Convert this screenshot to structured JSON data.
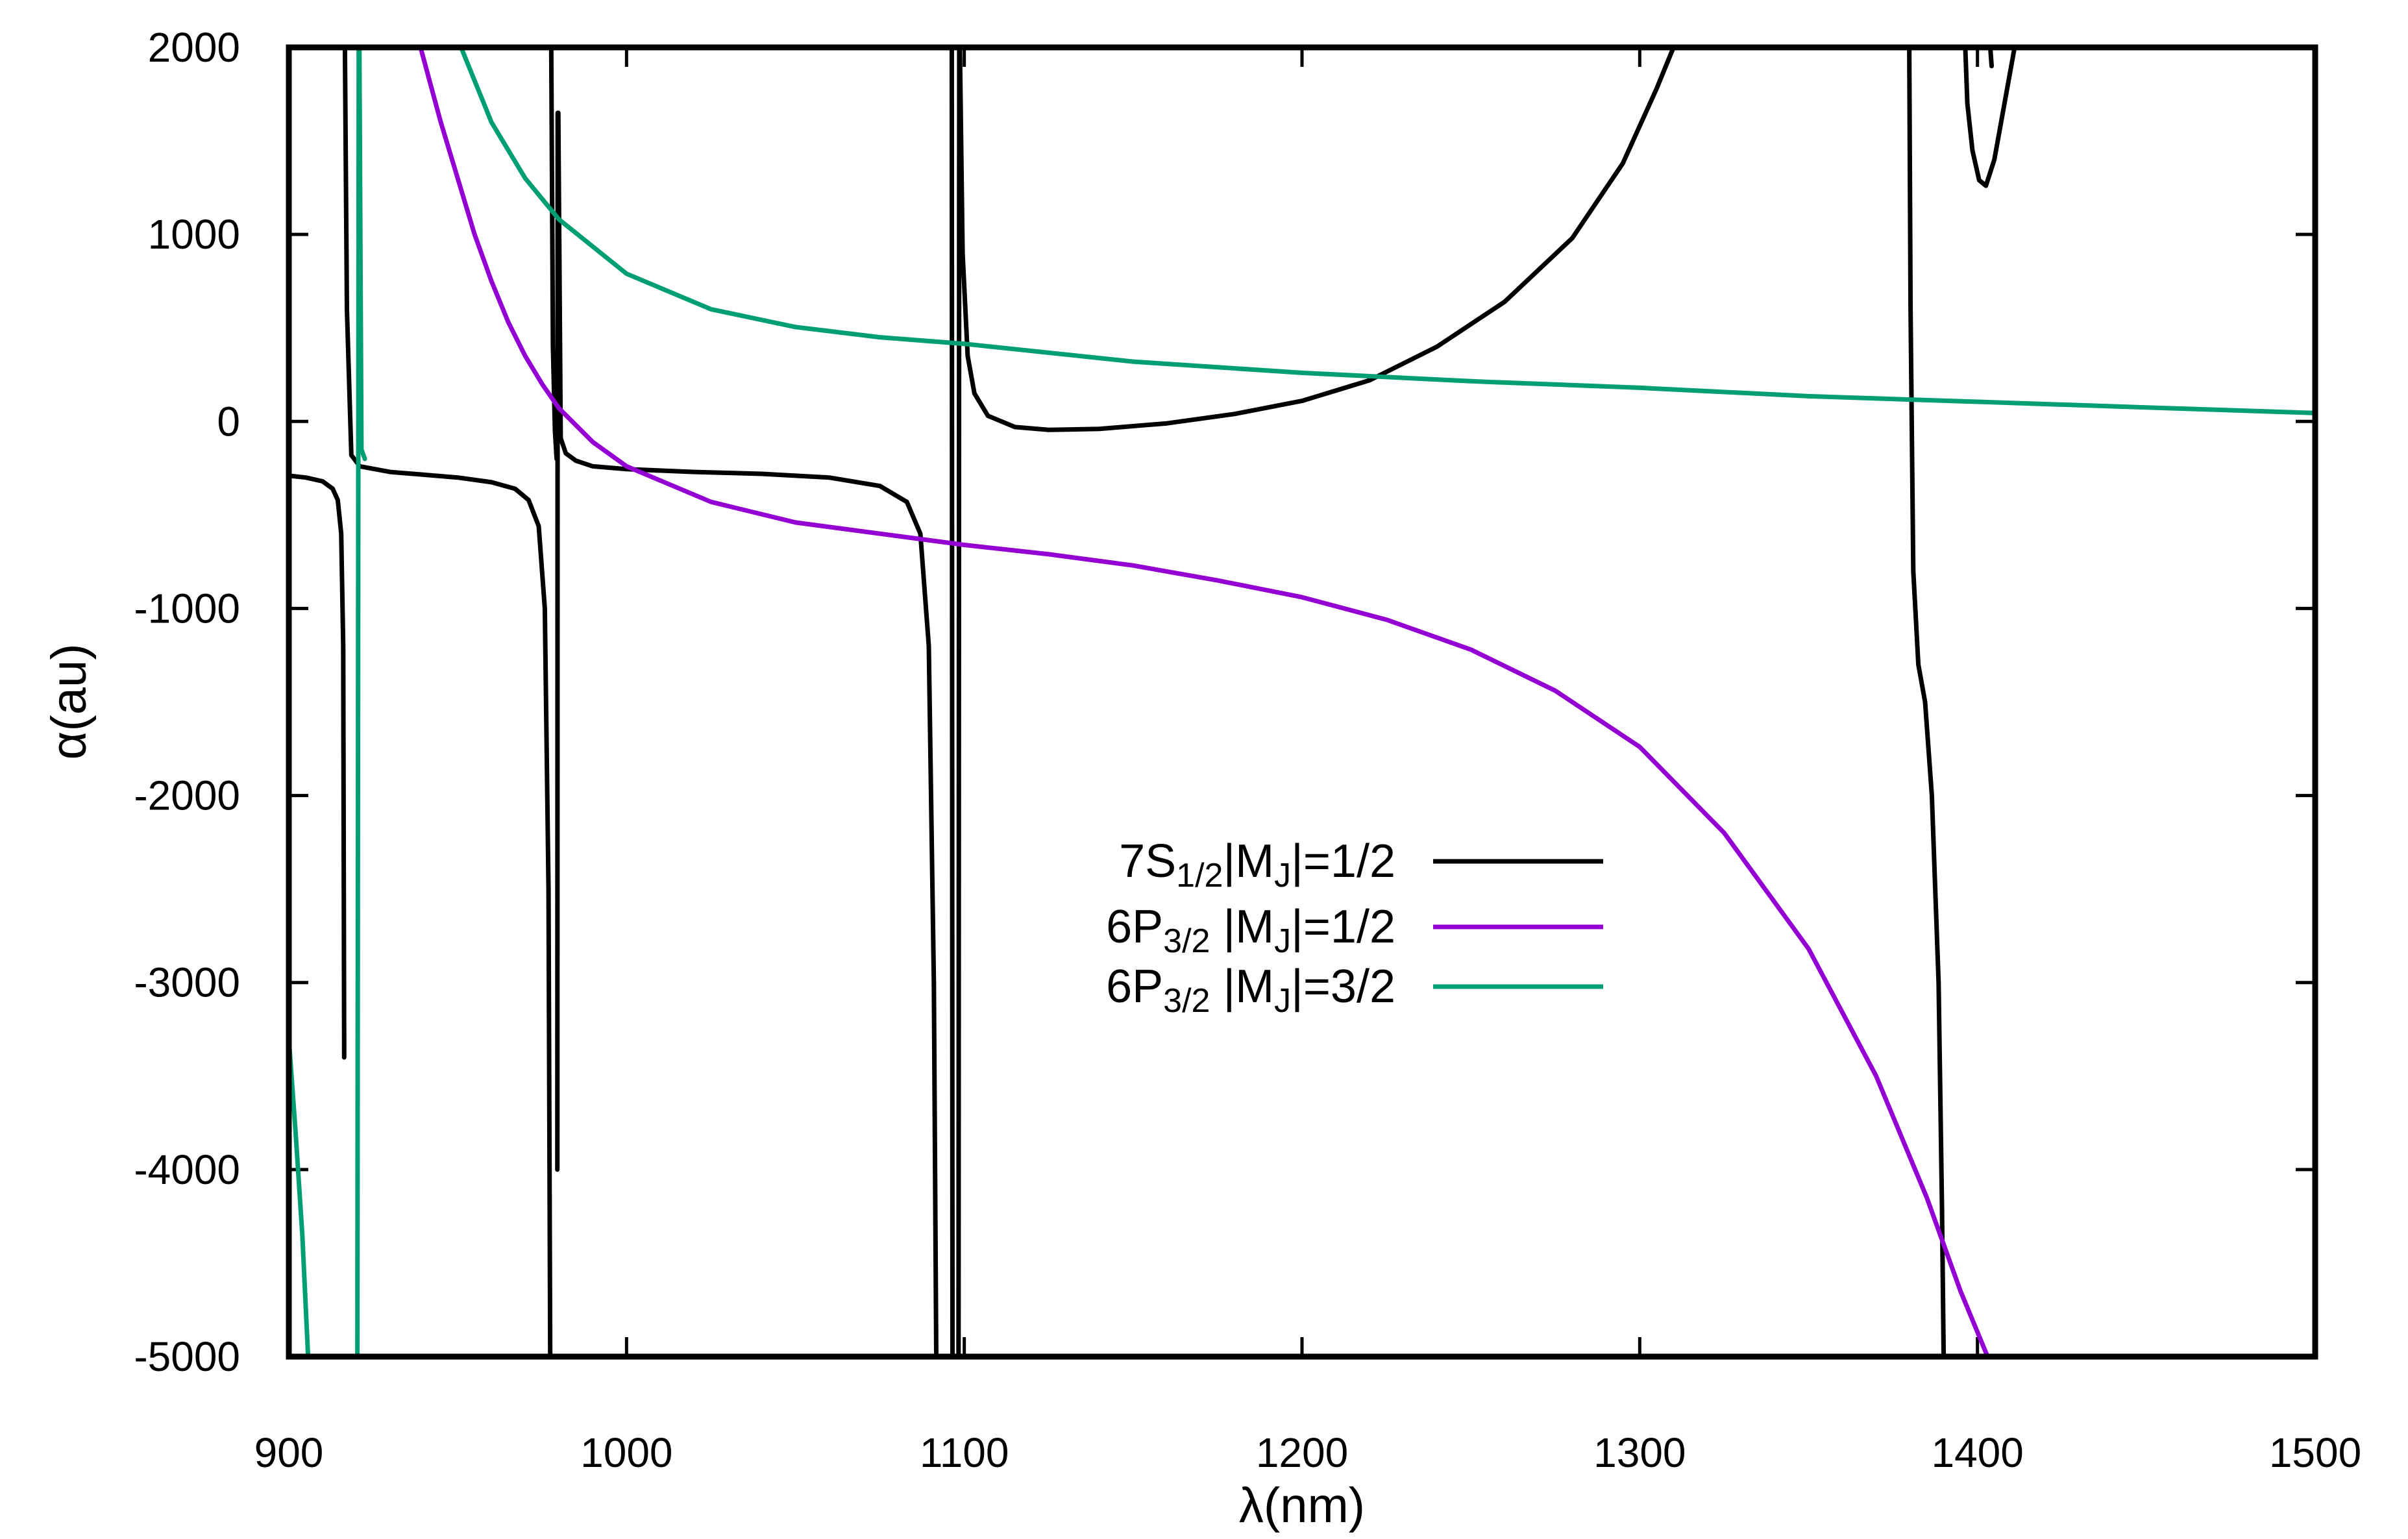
{
  "chart_data": {
    "type": "line",
    "title": "",
    "xlabel": "λ(nm)",
    "ylabel": "α(au)",
    "xlim": [
      900,
      1500
    ],
    "ylim": [
      -5000,
      2000
    ],
    "xticks": [
      900,
      1000,
      1100,
      1200,
      1300,
      1400,
      1500
    ],
    "yticks": [
      2000,
      1000,
      0,
      -1000,
      -2000,
      -3000,
      -4000,
      -5000
    ],
    "grid": false,
    "legend_position": "center-right",
    "series": [
      {
        "name": "7S1/2|MJ|=1/2",
        "legend": {
          "base": "7S",
          "sub1": "1/2",
          "mid": "|M",
          "sub2": "J",
          "tail": "|=1/2"
        },
        "color": "#000000",
        "points": [
          [
            900,
            -290
          ],
          [
            905,
            -300
          ],
          [
            910,
            -320
          ],
          [
            913,
            -360
          ],
          [
            914.5,
            -420
          ],
          [
            915.5,
            -600
          ],
          [
            916.1,
            -1200
          ],
          [
            916.4,
            -3400
          ],
          [
            null,
            null
          ],
          [
            916.6,
            2000
          ],
          [
            917.2,
            600
          ],
          [
            918.5,
            -180
          ],
          [
            921,
            -240
          ],
          [
            930,
            -270
          ],
          [
            940,
            -285
          ],
          [
            950,
            -300
          ],
          [
            960,
            -325
          ],
          [
            967,
            -360
          ],
          [
            971,
            -420
          ],
          [
            974,
            -560
          ],
          [
            975.8,
            -1000
          ],
          [
            976.9,
            -2500
          ],
          [
            977.4,
            -5000
          ],
          [
            null,
            null
          ],
          [
            977.7,
            2000
          ],
          [
            978.2,
            400
          ],
          [
            978.8,
            -50
          ],
          [
            979.3,
            -200
          ],
          [
            null,
            null
          ],
          [
            979.5,
            -4000
          ],
          [
            979.6,
            1650
          ],
          [
            null,
            null
          ],
          [
            979.8,
            1650
          ],
          [
            980.5,
            -90
          ],
          [
            982,
            -170
          ],
          [
            985,
            -210
          ],
          [
            990,
            -240
          ],
          [
            1000,
            -255
          ],
          [
            1020,
            -270
          ],
          [
            1040,
            -280
          ],
          [
            1060,
            -300
          ],
          [
            1075,
            -345
          ],
          [
            1083,
            -430
          ],
          [
            1087,
            -600
          ],
          [
            1089.5,
            -1200
          ],
          [
            1091,
            -3000
          ],
          [
            1091.7,
            -5000
          ],
          [
            null,
            null
          ],
          [
            1096.3,
            2000
          ],
          [
            1096.5,
            -5000
          ],
          [
            null,
            null
          ],
          [
            1098.3,
            -5000
          ],
          [
            1098.5,
            2000
          ],
          [
            null,
            null
          ],
          [
            1098.7,
            2000
          ],
          [
            1099.5,
            900
          ],
          [
            1101,
            350
          ],
          [
            1103,
            150
          ],
          [
            1107,
            30
          ],
          [
            1115,
            -30
          ],
          [
            1125,
            -45
          ],
          [
            1140,
            -40
          ],
          [
            1160,
            -10
          ],
          [
            1180,
            40
          ],
          [
            1200,
            110
          ],
          [
            1220,
            220
          ],
          [
            1240,
            400
          ],
          [
            1260,
            640
          ],
          [
            1280,
            980
          ],
          [
            1295,
            1380
          ],
          [
            1305,
            1780
          ],
          [
            1310,
            2000
          ],
          [
            null,
            null
          ],
          [
            1379.8,
            2000
          ],
          [
            1380.2,
            600
          ],
          [
            1381,
            -800
          ],
          [
            1382.5,
            -1300
          ],
          [
            1384.5,
            -1500
          ],
          [
            1386.5,
            -2000
          ],
          [
            1388.5,
            -3000
          ],
          [
            1389.5,
            -4200
          ],
          [
            1390,
            -5000
          ],
          [
            null,
            null
          ],
          [
            1396.4,
            2000
          ],
          [
            1397,
            1700
          ],
          [
            1398.5,
            1450
          ],
          [
            1400.5,
            1290
          ],
          [
            1402.5,
            1260
          ],
          [
            1405,
            1400
          ],
          [
            1408,
            1700
          ],
          [
            1411,
            2000
          ],
          [
            null,
            null
          ],
          [
            1403.8,
            2000
          ],
          [
            1404.2,
            1900
          ]
        ]
      },
      {
        "name": "6P3/2 |MJ|=1/2",
        "legend": {
          "base": "6P",
          "sub1": "3/2",
          "mid": " |M",
          "sub2": "J",
          "tail": "|=1/2"
        },
        "color": "#9400D3",
        "points": [
          [
            939,
            2000
          ],
          [
            945,
            1600
          ],
          [
            950,
            1300
          ],
          [
            955,
            1000
          ],
          [
            960,
            750
          ],
          [
            965,
            530
          ],
          [
            970,
            350
          ],
          [
            975,
            200
          ],
          [
            980,
            70
          ],
          [
            990,
            -110
          ],
          [
            1000,
            -240
          ],
          [
            1025,
            -430
          ],
          [
            1050,
            -540
          ],
          [
            1075,
            -600
          ],
          [
            1100,
            -660
          ],
          [
            1125,
            -710
          ],
          [
            1150,
            -770
          ],
          [
            1175,
            -850
          ],
          [
            1200,
            -940
          ],
          [
            1225,
            -1060
          ],
          [
            1250,
            -1220
          ],
          [
            1275,
            -1440
          ],
          [
            1300,
            -1740
          ],
          [
            1325,
            -2200
          ],
          [
            1350,
            -2820
          ],
          [
            1370,
            -3500
          ],
          [
            1385,
            -4150
          ],
          [
            1395,
            -4650
          ],
          [
            1403,
            -5000
          ]
        ]
      },
      {
        "name": "6P3/2 |MJ|=3/2",
        "legend": {
          "base": "6P",
          "sub1": "3/2",
          "mid": " |M",
          "sub2": "J",
          "tail": "|=3/2"
        },
        "color": "#009E73",
        "points": [
          [
            900,
            -3300
          ],
          [
            902,
            -3800
          ],
          [
            904,
            -4350
          ],
          [
            905.7,
            -5000
          ],
          [
            null,
            null
          ],
          [
            920.3,
            -5000
          ],
          [
            920.7,
            2000
          ],
          [
            null,
            null
          ],
          [
            920.9,
            2000
          ],
          [
            921.5,
            -150
          ],
          [
            922.5,
            -200
          ],
          [
            null,
            null
          ],
          [
            951,
            2000
          ],
          [
            960,
            1600
          ],
          [
            970,
            1300
          ],
          [
            980,
            1080
          ],
          [
            1000,
            790
          ],
          [
            1025,
            600
          ],
          [
            1050,
            505
          ],
          [
            1075,
            450
          ],
          [
            1100,
            415
          ],
          [
            1150,
            320
          ],
          [
            1200,
            260
          ],
          [
            1250,
            215
          ],
          [
            1300,
            180
          ],
          [
            1350,
            135
          ],
          [
            1400,
            105
          ],
          [
            1450,
            75
          ],
          [
            1500,
            45
          ]
        ]
      }
    ]
  }
}
